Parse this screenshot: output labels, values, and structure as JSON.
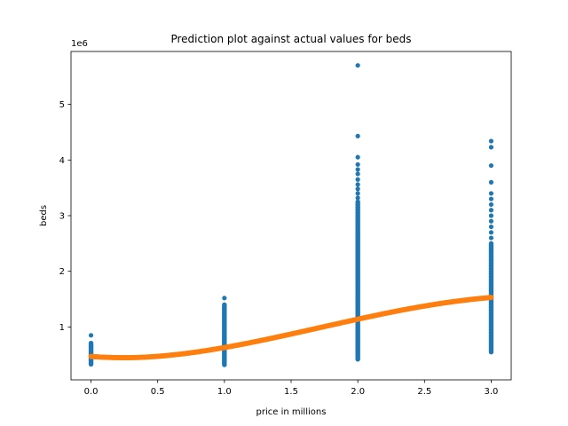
{
  "chart_data": {
    "type": "scatter",
    "title": "Prediction plot against actual values for beds",
    "xlabel": "price in millions",
    "ylabel": "beds",
    "y_offset_label": "1e6",
    "xlim": [
      -0.15,
      3.15
    ],
    "ylim": [
      50000,
      5950000
    ],
    "x_ticks": [
      0.0,
      0.5,
      1.0,
      1.5,
      2.0,
      2.5,
      3.0
    ],
    "x_tick_labels": [
      "0.0",
      "0.5",
      "1.0",
      "1.5",
      "2.0",
      "2.5",
      "3.0"
    ],
    "y_ticks": [
      1000000,
      2000000,
      3000000,
      4000000,
      5000000
    ],
    "y_tick_labels": [
      "1",
      "2",
      "3",
      "4",
      "5"
    ],
    "grid": false,
    "colors": {
      "actual": "#1f77b4",
      "predicted": "#ff7f0e"
    },
    "series": [
      {
        "kind": "actual",
        "points": [
          [
            0,
            330000
          ],
          [
            0,
            350000
          ],
          [
            0,
            370000
          ],
          [
            0,
            390000
          ],
          [
            0,
            410000
          ],
          [
            0,
            430000
          ],
          [
            0,
            450000
          ],
          [
            0,
            470000
          ],
          [
            0,
            490000
          ],
          [
            0,
            510000
          ],
          [
            0,
            530000
          ],
          [
            0,
            550000
          ],
          [
            0,
            570000
          ],
          [
            0,
            590000
          ],
          [
            0,
            610000
          ],
          [
            0,
            630000
          ],
          [
            0,
            650000
          ],
          [
            0,
            670000
          ],
          [
            0,
            690000
          ],
          [
            0,
            710000
          ],
          [
            0,
            850000
          ],
          [
            1,
            320000
          ],
          [
            1,
            350000
          ],
          [
            1,
            380000
          ],
          [
            1,
            410000
          ],
          [
            1,
            440000
          ],
          [
            1,
            470000
          ],
          [
            1,
            500000
          ],
          [
            1,
            530000
          ],
          [
            1,
            560000
          ],
          [
            1,
            590000
          ],
          [
            1,
            620000
          ],
          [
            1,
            650000
          ],
          [
            1,
            680000
          ],
          [
            1,
            710000
          ],
          [
            1,
            740000
          ],
          [
            1,
            770000
          ],
          [
            1,
            800000
          ],
          [
            1,
            830000
          ],
          [
            1,
            860000
          ],
          [
            1,
            890000
          ],
          [
            1,
            920000
          ],
          [
            1,
            950000
          ],
          [
            1,
            980000
          ],
          [
            1,
            1010000
          ],
          [
            1,
            1040000
          ],
          [
            1,
            1070000
          ],
          [
            1,
            1100000
          ],
          [
            1,
            1130000
          ],
          [
            1,
            1160000
          ],
          [
            1,
            1190000
          ],
          [
            1,
            1220000
          ],
          [
            1,
            1250000
          ],
          [
            1,
            1280000
          ],
          [
            1,
            1310000
          ],
          [
            1,
            1340000
          ],
          [
            1,
            1370000
          ],
          [
            1,
            1400000
          ],
          [
            1,
            1520000
          ],
          [
            2,
            420000
          ],
          [
            2,
            460000
          ],
          [
            2,
            500000
          ],
          [
            2,
            540000
          ],
          [
            2,
            580000
          ],
          [
            2,
            620000
          ],
          [
            2,
            660000
          ],
          [
            2,
            700000
          ],
          [
            2,
            740000
          ],
          [
            2,
            780000
          ],
          [
            2,
            820000
          ],
          [
            2,
            860000
          ],
          [
            2,
            900000
          ],
          [
            2,
            940000
          ],
          [
            2,
            980000
          ],
          [
            2,
            1020000
          ],
          [
            2,
            1060000
          ],
          [
            2,
            1100000
          ],
          [
            2,
            1140000
          ],
          [
            2,
            1180000
          ],
          [
            2,
            1220000
          ],
          [
            2,
            1260000
          ],
          [
            2,
            1300000
          ],
          [
            2,
            1340000
          ],
          [
            2,
            1380000
          ],
          [
            2,
            1420000
          ],
          [
            2,
            1460000
          ],
          [
            2,
            1500000
          ],
          [
            2,
            1540000
          ],
          [
            2,
            1580000
          ],
          [
            2,
            1620000
          ],
          [
            2,
            1660000
          ],
          [
            2,
            1700000
          ],
          [
            2,
            1740000
          ],
          [
            2,
            1780000
          ],
          [
            2,
            1820000
          ],
          [
            2,
            1860000
          ],
          [
            2,
            1900000
          ],
          [
            2,
            1940000
          ],
          [
            2,
            1980000
          ],
          [
            2,
            2020000
          ],
          [
            2,
            2060000
          ],
          [
            2,
            2100000
          ],
          [
            2,
            2140000
          ],
          [
            2,
            2180000
          ],
          [
            2,
            2220000
          ],
          [
            2,
            2260000
          ],
          [
            2,
            2300000
          ],
          [
            2,
            2340000
          ],
          [
            2,
            2380000
          ],
          [
            2,
            2420000
          ],
          [
            2,
            2460000
          ],
          [
            2,
            2500000
          ],
          [
            2,
            2540000
          ],
          [
            2,
            2580000
          ],
          [
            2,
            2620000
          ],
          [
            2,
            2660000
          ],
          [
            2,
            2700000
          ],
          [
            2,
            2740000
          ],
          [
            2,
            2780000
          ],
          [
            2,
            2820000
          ],
          [
            2,
            2860000
          ],
          [
            2,
            2900000
          ],
          [
            2,
            2950000
          ],
          [
            2,
            3000000
          ],
          [
            2,
            3050000
          ],
          [
            2,
            3100000
          ],
          [
            2,
            3150000
          ],
          [
            2,
            3200000
          ],
          [
            2,
            3250000
          ],
          [
            2,
            3320000
          ],
          [
            2,
            3400000
          ],
          [
            2,
            3480000
          ],
          [
            2,
            3560000
          ],
          [
            2,
            3650000
          ],
          [
            2,
            3750000
          ],
          [
            2,
            3830000
          ],
          [
            2,
            3920000
          ],
          [
            2,
            4050000
          ],
          [
            2,
            4430000
          ],
          [
            2,
            5700000
          ],
          [
            3,
            550000
          ],
          [
            3,
            600000
          ],
          [
            3,
            650000
          ],
          [
            3,
            700000
          ],
          [
            3,
            750000
          ],
          [
            3,
            800000
          ],
          [
            3,
            850000
          ],
          [
            3,
            900000
          ],
          [
            3,
            950000
          ],
          [
            3,
            1000000
          ],
          [
            3,
            1050000
          ],
          [
            3,
            1100000
          ],
          [
            3,
            1150000
          ],
          [
            3,
            1200000
          ],
          [
            3,
            1250000
          ],
          [
            3,
            1300000
          ],
          [
            3,
            1350000
          ],
          [
            3,
            1400000
          ],
          [
            3,
            1450000
          ],
          [
            3,
            1500000
          ],
          [
            3,
            1550000
          ],
          [
            3,
            1600000
          ],
          [
            3,
            1650000
          ],
          [
            3,
            1700000
          ],
          [
            3,
            1750000
          ],
          [
            3,
            1800000
          ],
          [
            3,
            1850000
          ],
          [
            3,
            1900000
          ],
          [
            3,
            1950000
          ],
          [
            3,
            2000000
          ],
          [
            3,
            2050000
          ],
          [
            3,
            2100000
          ],
          [
            3,
            2150000
          ],
          [
            3,
            2200000
          ],
          [
            3,
            2250000
          ],
          [
            3,
            2300000
          ],
          [
            3,
            2350000
          ],
          [
            3,
            2400000
          ],
          [
            3,
            2450000
          ],
          [
            3,
            2500000
          ],
          [
            3,
            2600000
          ],
          [
            3,
            2700000
          ],
          [
            3,
            2800000
          ],
          [
            3,
            2900000
          ],
          [
            3,
            3000000
          ],
          [
            3,
            3100000
          ],
          [
            3,
            3200000
          ],
          [
            3,
            3300000
          ],
          [
            3,
            3400000
          ],
          [
            3,
            3600000
          ],
          [
            3,
            3900000
          ],
          [
            3,
            4230000
          ],
          [
            3,
            4340000
          ]
        ]
      },
      {
        "kind": "predicted",
        "points": [
          [
            0.0,
            470000
          ],
          [
            0.05,
            462000
          ],
          [
            0.1,
            456000
          ],
          [
            0.15,
            452000
          ],
          [
            0.2,
            449000
          ],
          [
            0.25,
            448000
          ],
          [
            0.3,
            449000
          ],
          [
            0.35,
            452000
          ],
          [
            0.4,
            457000
          ],
          [
            0.45,
            464000
          ],
          [
            0.5,
            472000
          ],
          [
            0.55,
            482000
          ],
          [
            0.6,
            494000
          ],
          [
            0.65,
            507000
          ],
          [
            0.7,
            521000
          ],
          [
            0.75,
            536000
          ],
          [
            0.8,
            553000
          ],
          [
            0.85,
            571000
          ],
          [
            0.9,
            590000
          ],
          [
            0.95,
            610000
          ],
          [
            1.0,
            630000
          ],
          [
            1.05,
            652000
          ],
          [
            1.1,
            674000
          ],
          [
            1.15,
            697000
          ],
          [
            1.2,
            721000
          ],
          [
            1.25,
            745000
          ],
          [
            1.3,
            770000
          ],
          [
            1.35,
            795000
          ],
          [
            1.4,
            821000
          ],
          [
            1.45,
            847000
          ],
          [
            1.5,
            873000
          ],
          [
            1.55,
            900000
          ],
          [
            1.6,
            926000
          ],
          [
            1.65,
            953000
          ],
          [
            1.7,
            980000
          ],
          [
            1.75,
            1007000
          ],
          [
            1.8,
            1034000
          ],
          [
            1.85,
            1060000
          ],
          [
            1.9,
            1087000
          ],
          [
            1.95,
            1113000
          ],
          [
            2.0,
            1140000
          ],
          [
            2.05,
            1166000
          ],
          [
            2.1,
            1191000
          ],
          [
            2.15,
            1216000
          ],
          [
            2.2,
            1241000
          ],
          [
            2.25,
            1265000
          ],
          [
            2.3,
            1289000
          ],
          [
            2.35,
            1312000
          ],
          [
            2.4,
            1334000
          ],
          [
            2.45,
            1355000
          ],
          [
            2.5,
            1376000
          ],
          [
            2.55,
            1396000
          ],
          [
            2.6,
            1415000
          ],
          [
            2.65,
            1433000
          ],
          [
            2.7,
            1450000
          ],
          [
            2.75,
            1466000
          ],
          [
            2.8,
            1481000
          ],
          [
            2.85,
            1495000
          ],
          [
            2.9,
            1508000
          ],
          [
            2.95,
            1520000
          ],
          [
            3.0,
            1530000
          ]
        ]
      }
    ]
  }
}
